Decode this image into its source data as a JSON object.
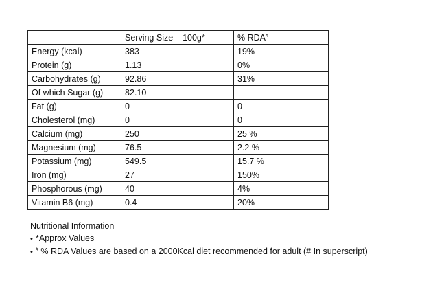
{
  "table": {
    "headers": [
      "",
      "Serving Size – 100g*",
      "% RDA"
    ],
    "header_superscript": "#",
    "rows": [
      {
        "nutrient": "Energy (kcal)",
        "serving": "383",
        "rda": "19%"
      },
      {
        "nutrient": "Protein (g)",
        "serving": "1.13",
        "rda": "0%"
      },
      {
        "nutrient": "Carbohydrates (g)",
        "serving": "92.86",
        "rda": "31%"
      },
      {
        "nutrient": "Of which Sugar (g)",
        "serving": "82.10",
        "rda": ""
      },
      {
        "nutrient": "Fat (g)",
        "serving": "0",
        "rda": "0"
      },
      {
        "nutrient": "Cholesterol (mg)",
        "serving": "0",
        "rda": "0"
      },
      {
        "nutrient": "Calcium (mg)",
        "serving": "250",
        "rda": "25 %"
      },
      {
        "nutrient": "Magnesium (mg)",
        "serving": "76.5",
        "rda": "2.2 %"
      },
      {
        "nutrient": "Potassium (mg)",
        "serving": "549.5",
        "rda": "15.7 %"
      },
      {
        "nutrient": "Iron (mg)",
        "serving": "27",
        "rda": "150%"
      },
      {
        "nutrient": "Phosphorous (mg)",
        "serving": "40",
        "rda": "4%"
      },
      {
        "nutrient": "Vitamin B6 (mg)",
        "serving": "0.4",
        "rda": "20%"
      }
    ]
  },
  "notes": {
    "title": "Nutritional Information",
    "bullet": "•",
    "items": [
      {
        "prefix": "*",
        "superscript": "",
        "text": "Approx Values"
      },
      {
        "prefix": "",
        "superscript": "#",
        "text": " % RDA Values are based on a 2000Kcal diet recommended for adult  (# In superscript)"
      }
    ]
  }
}
